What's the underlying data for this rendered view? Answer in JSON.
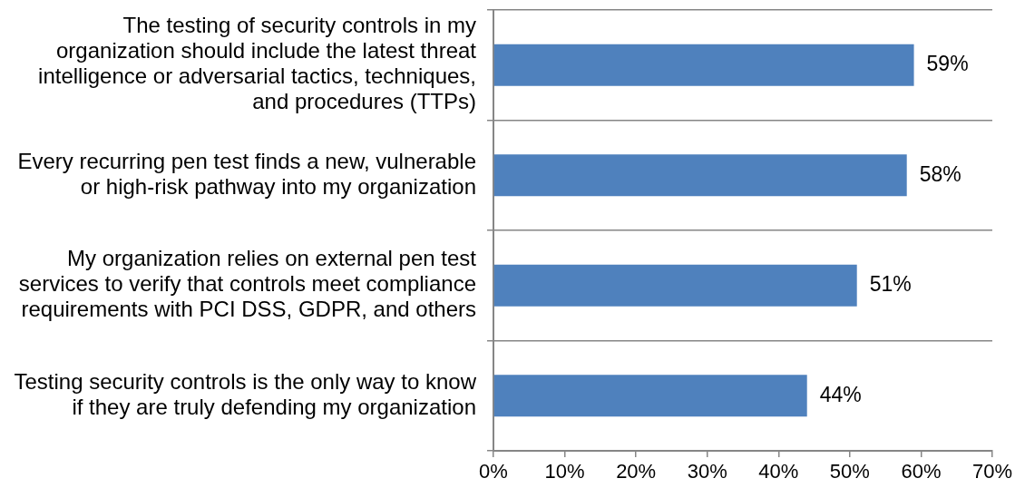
{
  "chart_data": {
    "type": "bar",
    "orientation": "horizontal",
    "categories": [
      "The testing of security controls in my organization should include the latest threat intelligence or adversarial tactics, techniques, and procedures (TTPs)",
      "Every recurring pen test finds a new, vulnerable or high-risk pathway into my organization",
      "My organization relies on external pen test services to verify that controls meet compliance requirements with PCI DSS, GDPR, and others",
      "Testing security controls is the only way to know if they are truly defending my organization"
    ],
    "values": [
      59,
      58,
      51,
      44
    ],
    "color": "#4f81bd",
    "value_labels": [
      "59%",
      "58%",
      "51%",
      "44%"
    ],
    "xlim": [
      0,
      70
    ],
    "xticks": [
      {
        "value": 0,
        "label": "0%"
      },
      {
        "value": 10,
        "label": "10%"
      },
      {
        "value": 20,
        "label": "20%"
      },
      {
        "value": 30,
        "label": "30%"
      },
      {
        "value": 40,
        "label": "40%"
      },
      {
        "value": 50,
        "label": "50%"
      },
      {
        "value": 60,
        "label": "60%"
      },
      {
        "value": 70,
        "label": "70%"
      }
    ],
    "grid": "y"
  }
}
